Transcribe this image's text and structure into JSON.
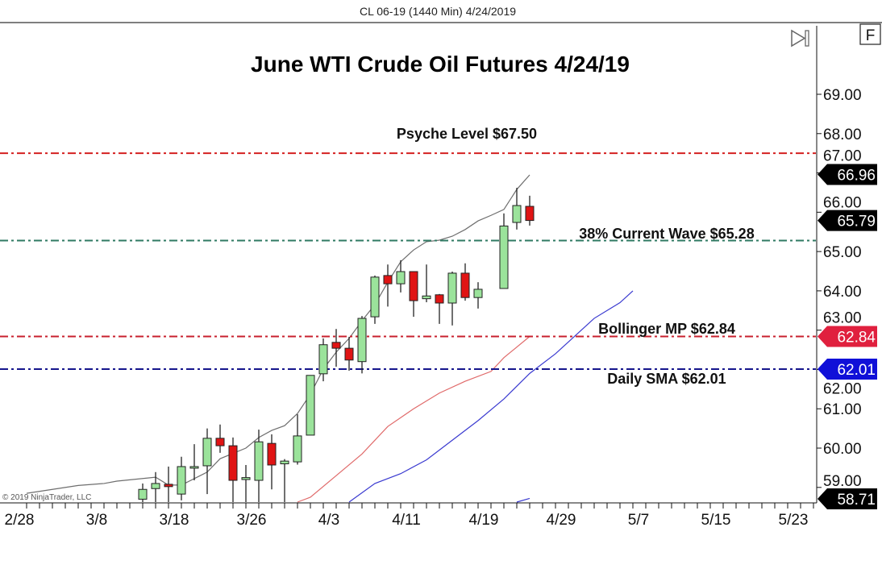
{
  "header": {
    "instrument_label": "CL 06-19 (1440 Min)  4/24/2019"
  },
  "toolbar": {
    "scroll_end_icon": "skip-to-end-icon",
    "f_button_label": "F"
  },
  "copyright": "© 2019 NinjaTrader, LLC",
  "chart_data": {
    "type": "candlestick",
    "title": "June WTI Crude Oil Futures 4/24/19",
    "xlabel": "",
    "ylabel": "",
    "ylim": [
      58.5,
      69.6
    ],
    "x_ticks": [
      "2/28",
      "3/8",
      "3/18",
      "3/26",
      "4/3",
      "4/11",
      "4/19",
      "4/29",
      "5/7",
      "5/15",
      "5/23"
    ],
    "y_ticks": [
      "69.00",
      "68.00",
      "67.00",
      "66.00",
      "65.00",
      "64.00",
      "63.00",
      "62.00",
      "61.00",
      "60.00",
      "59.00"
    ],
    "grid": false,
    "candles": [
      {
        "date": "3/13",
        "open": 58.7,
        "high": 59.1,
        "low": 58.55,
        "close": 58.95
      },
      {
        "date": "3/14",
        "open": 58.97,
        "high": 59.39,
        "low": 58.5,
        "close": 59.1
      },
      {
        "date": "3/15",
        "open": 59.08,
        "high": 59.53,
        "low": 58.5,
        "close": 59.02
      },
      {
        "date": "3/18",
        "open": 58.83,
        "high": 59.78,
        "low": 58.67,
        "close": 59.53
      },
      {
        "date": "3/19",
        "open": 59.5,
        "high": 60.1,
        "low": 59.18,
        "close": 59.53
      },
      {
        "date": "3/20",
        "open": 59.55,
        "high": 60.5,
        "low": 58.83,
        "close": 60.25
      },
      {
        "date": "3/21",
        "open": 60.25,
        "high": 60.6,
        "low": 59.88,
        "close": 60.06
      },
      {
        "date": "3/22",
        "open": 60.06,
        "high": 60.27,
        "low": 58.5,
        "close": 59.18
      },
      {
        "date": "3/25",
        "open": 59.2,
        "high": 59.57,
        "low": 58.5,
        "close": 59.25
      },
      {
        "date": "3/26",
        "open": 59.18,
        "high": 60.47,
        "low": 58.5,
        "close": 60.16
      },
      {
        "date": "3/27",
        "open": 60.12,
        "high": 60.35,
        "low": 58.95,
        "close": 59.57
      },
      {
        "date": "3/28",
        "open": 59.6,
        "high": 59.72,
        "low": 58.5,
        "close": 59.67
      },
      {
        "date": "3/29",
        "open": 59.65,
        "high": 60.86,
        "low": 59.58,
        "close": 60.31
      },
      {
        "date": "4/1",
        "open": 60.33,
        "high": 61.85,
        "low": 60.33,
        "close": 61.85
      },
      {
        "date": "4/2",
        "open": 61.89,
        "high": 62.79,
        "low": 61.7,
        "close": 62.63
      },
      {
        "date": "4/3",
        "open": 62.69,
        "high": 63.03,
        "low": 62.07,
        "close": 62.54
      },
      {
        "date": "4/4",
        "open": 62.54,
        "high": 62.83,
        "low": 61.97,
        "close": 62.24
      },
      {
        "date": "4/5",
        "open": 62.2,
        "high": 63.36,
        "low": 61.9,
        "close": 63.3
      },
      {
        "date": "4/8",
        "open": 63.34,
        "high": 64.39,
        "low": 63.16,
        "close": 64.35
      },
      {
        "date": "4/9",
        "open": 64.39,
        "high": 64.67,
        "low": 63.6,
        "close": 64.18
      },
      {
        "date": "4/10",
        "open": 64.18,
        "high": 64.78,
        "low": 63.96,
        "close": 64.49
      },
      {
        "date": "4/11",
        "open": 64.49,
        "high": 64.49,
        "low": 63.34,
        "close": 63.75
      },
      {
        "date": "4/12",
        "open": 63.8,
        "high": 64.67,
        "low": 63.71,
        "close": 63.87
      },
      {
        "date": "4/15",
        "open": 63.9,
        "high": 63.92,
        "low": 63.16,
        "close": 63.69
      },
      {
        "date": "4/16",
        "open": 63.69,
        "high": 64.49,
        "low": 63.12,
        "close": 64.45
      },
      {
        "date": "4/17",
        "open": 64.45,
        "high": 64.7,
        "low": 63.75,
        "close": 63.83
      },
      {
        "date": "4/18",
        "open": 63.83,
        "high": 64.22,
        "low": 63.55,
        "close": 64.04
      },
      {
        "date": "4/22",
        "open": 64.06,
        "high": 65.97,
        "low": 64.06,
        "close": 65.65
      },
      {
        "date": "4/23",
        "open": 65.74,
        "high": 66.62,
        "low": 65.56,
        "close": 66.17
      },
      {
        "date": "4/24",
        "open": 66.15,
        "high": 66.42,
        "low": 65.66,
        "close": 65.79
      }
    ],
    "indicator_lines": [
      {
        "color": "#6e6e6e",
        "points": [
          [
            "2/28",
            58.85
          ],
          [
            "3/4",
            58.95
          ],
          [
            "3/6",
            59.05
          ],
          [
            "3/8",
            59.1
          ],
          [
            "3/11",
            59.16
          ],
          [
            "3/14",
            59.26
          ],
          [
            "3/15",
            59.06
          ],
          [
            "3/18",
            59.06
          ],
          [
            "3/20",
            59.39
          ],
          [
            "3/21",
            59.73
          ],
          [
            "3/25",
            60.0
          ],
          [
            "3/26",
            60.27
          ],
          [
            "3/27",
            60.45
          ],
          [
            "3/28",
            60.57
          ],
          [
            "3/29",
            60.88
          ],
          [
            "4/1",
            61.37
          ],
          [
            "4/2",
            62.01
          ],
          [
            "4/3",
            62.44
          ],
          [
            "4/4",
            62.79
          ],
          [
            "4/5",
            63.24
          ],
          [
            "4/8",
            63.65
          ],
          [
            "4/9",
            64.22
          ],
          [
            "4/10",
            64.74
          ],
          [
            "4/11",
            65.04
          ],
          [
            "4/12",
            65.25
          ],
          [
            "4/15",
            65.29
          ],
          [
            "4/16",
            65.39
          ],
          [
            "4/17",
            65.56
          ],
          [
            "4/18",
            65.78
          ],
          [
            "4/19",
            65.92
          ],
          [
            "4/22",
            66.07
          ],
          [
            "4/23",
            66.58
          ],
          [
            "4/24",
            66.95
          ]
        ]
      },
      {
        "color": "#e06a6a",
        "points": [
          [
            "3/29",
            58.55
          ],
          [
            "4/1",
            58.75
          ],
          [
            "4/3",
            59.3
          ],
          [
            "4/5",
            59.85
          ],
          [
            "4/9",
            60.55
          ],
          [
            "4/11",
            61.0
          ],
          [
            "4/15",
            61.4
          ],
          [
            "4/17",
            61.7
          ],
          [
            "4/19",
            61.95
          ],
          [
            "4/22",
            62.3
          ],
          [
            "4/24",
            62.84
          ]
        ]
      },
      {
        "color": "#3a3ad0",
        "points": [
          [
            "4/4",
            58.55
          ],
          [
            "4/8",
            59.1
          ],
          [
            "4/10",
            59.35
          ],
          [
            "4/12",
            59.7
          ],
          [
            "4/16",
            60.2
          ],
          [
            "4/18",
            60.7
          ],
          [
            "4/22",
            61.25
          ],
          [
            "4/24",
            61.9
          ],
          [
            "4/26",
            62.4
          ],
          [
            "4/30",
            63.0
          ],
          [
            "5/1",
            63.3
          ],
          [
            "5/3",
            63.7
          ],
          [
            "5/6",
            64.0
          ]
        ]
      },
      {
        "color": "#3a3ad0",
        "points": [
          [
            "4/23",
            58.55
          ],
          [
            "4/24",
            58.72
          ]
        ]
      }
    ],
    "horizontal_levels": [
      {
        "label": "Psyche Level $67.50",
        "value": 67.5,
        "color": "#d42020"
      },
      {
        "label": "38% Current Wave $65.28",
        "value": 65.28,
        "color": "#2f7a63"
      },
      {
        "label": "Bollinger MP $62.84",
        "value": 62.84,
        "color": "#c8202e"
      },
      {
        "label": "Daily SMA $62.01",
        "value": 62.01,
        "color": "#16168c"
      }
    ],
    "price_badges": [
      {
        "text": "66.96",
        "value": 66.96,
        "color": "#000000"
      },
      {
        "text": "65.79",
        "value": 65.79,
        "color": "#000000"
      },
      {
        "text": "62.84",
        "value": 62.84,
        "color": "#e0203e"
      },
      {
        "text": "62.01",
        "value": 62.01,
        "color": "#1010d8"
      },
      {
        "text": "58.71",
        "value": 58.71,
        "color": "#000000"
      }
    ],
    "colors": {
      "up": "#9be39b",
      "down": "#e01414",
      "outline": "#222222"
    }
  }
}
